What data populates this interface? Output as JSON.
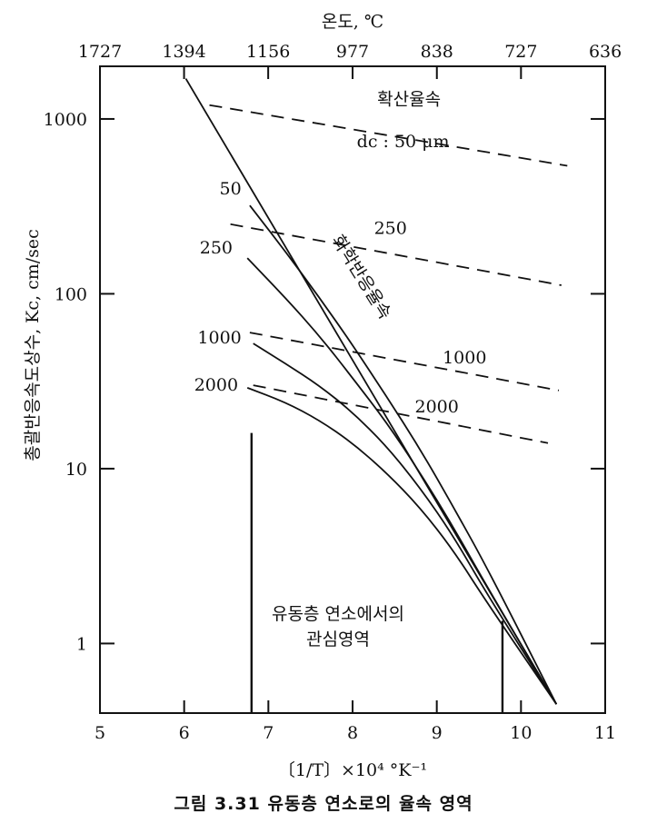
{
  "chart_data": {
    "type": "line",
    "xlabel": "〔1/T〕×10⁴ °K⁻¹",
    "ylabel": "총괄반응속도상수, Kc, cm/sec",
    "x2label": "온도, ℃",
    "xlim": [
      5,
      11
    ],
    "ylim": [
      0.4,
      2000
    ],
    "yscale": "log",
    "x_ticks": [
      "5",
      "6",
      "7",
      "8",
      "9",
      "10",
      "11"
    ],
    "x2_ticks": [
      "1727",
      "1394",
      "1156",
      "977",
      "838",
      "727",
      "636"
    ],
    "y_ticks": [
      "1",
      "10",
      "100",
      "1000"
    ],
    "grid": false,
    "series": [
      {
        "name": "화학반응율속",
        "style": "solid",
        "x": [
          6.02,
          10.42
        ],
        "y": [
          1700,
          0.45
        ]
      },
      {
        "name": "50",
        "style": "solid",
        "x": [
          6.78,
          7.2,
          7.6,
          8.0,
          8.4,
          8.8,
          9.2,
          9.6,
          10.42
        ],
        "y": [
          320,
          175,
          96,
          51,
          26,
          13,
          6,
          2.7,
          0.45
        ]
      },
      {
        "name": "250",
        "style": "solid",
        "x": [
          6.75,
          7.2,
          7.6,
          8.0,
          8.4,
          8.8,
          9.2,
          9.6,
          10.42
        ],
        "y": [
          160,
          95,
          58,
          33,
          18.5,
          9.5,
          4.6,
          2.1,
          0.45
        ]
      },
      {
        "name": "1000",
        "style": "solid",
        "x": [
          6.82,
          7.2,
          7.6,
          8.0,
          8.4,
          8.8,
          9.2,
          9.6,
          10.42
        ],
        "y": [
          52,
          40,
          30,
          21,
          13.5,
          7.8,
          4.1,
          1.9,
          0.45
        ]
      },
      {
        "name": "2000",
        "style": "solid",
        "x": [
          6.75,
          7.2,
          7.6,
          8.0,
          8.4,
          8.8,
          9.2,
          9.6,
          10.42
        ],
        "y": [
          29,
          24,
          19,
          14,
          9.5,
          6,
          3.4,
          1.7,
          0.45
        ]
      },
      {
        "name": "50",
        "style": "dashed",
        "x": [
          6.3,
          10.55
        ],
        "y": [
          1200,
          540
        ]
      },
      {
        "name": "250",
        "style": "dashed",
        "x": [
          6.55,
          10.48
        ],
        "y": [
          250,
          112
        ]
      },
      {
        "name": "1000",
        "style": "dashed",
        "x": [
          6.78,
          10.45
        ],
        "y": [
          60,
          28
        ]
      },
      {
        "name": "2000",
        "style": "dashed",
        "x": [
          6.82,
          10.32
        ],
        "y": [
          30,
          14
        ]
      }
    ],
    "annotations": [
      {
        "text": "확산율속",
        "x": 8.67,
        "y": 1200
      },
      {
        "text": "dc : 50 μm",
        "x": 8.6,
        "y": 690
      },
      {
        "text": "화학반응율속",
        "x": 8.05,
        "y": 120
      },
      {
        "text": "50",
        "x": 6.55,
        "y": 370
      },
      {
        "text": "250",
        "x": 6.38,
        "y": 170
      },
      {
        "text": "1000",
        "x": 6.42,
        "y": 52
      },
      {
        "text": "2000",
        "x": 6.38,
        "y": 28
      },
      {
        "text": "250",
        "x": 8.45,
        "y": 220
      },
      {
        "text": "1000",
        "x": 9.33,
        "y": 40
      },
      {
        "text": "2000",
        "x": 9.0,
        "y": 21
      }
    ],
    "markers": [
      {
        "x": 6.8,
        "y_from": 0.4,
        "y_to": 16
      },
      {
        "x": 9.78,
        "y_from": 0.4,
        "y_to": 1.35
      }
    ]
  },
  "region_note": [
    "유동층 연소에서의",
    "관심영역"
  ],
  "caption": "그림 3.31  유동층 연소로의 율속 영역"
}
